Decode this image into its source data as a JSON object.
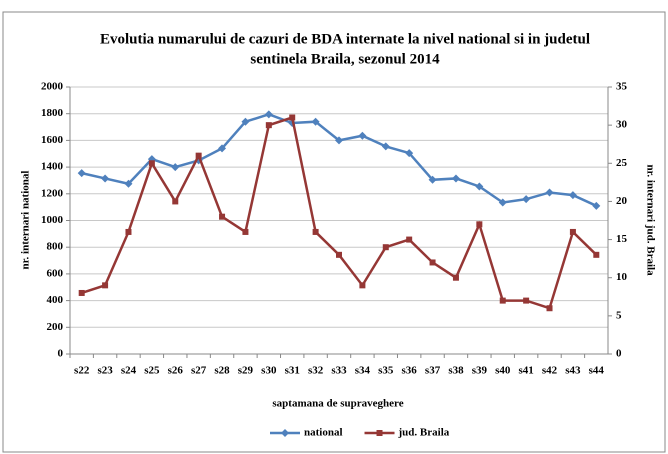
{
  "chart_data": {
    "type": "line",
    "title_lines": [
      "Evolutia numarului de cazuri de BDA internate la nivel national si in judetul",
      "sentinela Braila, sezonul 2014"
    ],
    "x_label": "saptamana de supraveghere",
    "y_label": "nr. internari national",
    "y2_label": "nr. internari jud. Braila",
    "categories": [
      "s22",
      "s23",
      "s24",
      "s25",
      "s26",
      "s27",
      "s28",
      "s29",
      "s30",
      "s31",
      "s32",
      "s33",
      "s34",
      "s35",
      "s36",
      "s37",
      "s38",
      "s39",
      "s40",
      "s41",
      "s42",
      "s43",
      "s44"
    ],
    "series": [
      {
        "name": "national",
        "color": "#4f81bd",
        "marker": "diamond",
        "values": [
          1355,
          1315,
          1275,
          1460,
          1400,
          1450,
          1540,
          1740,
          1795,
          1730,
          1740,
          1600,
          1635,
          1555,
          1505,
          1305,
          1315,
          1255,
          1135,
          1160,
          1210,
          1190,
          1110
        ]
      },
      {
        "name": "jud. Braila",
        "color": "#953735",
        "marker": "square",
        "axis": "y2",
        "values": [
          8,
          9,
          16,
          25,
          20,
          26,
          18,
          16,
          30,
          31,
          16,
          13,
          9,
          14,
          15,
          12,
          10,
          17,
          7,
          7,
          6,
          16,
          13
        ]
      }
    ],
    "ylim": [
      0,
      2000
    ],
    "yticks": [
      0,
      200,
      400,
      600,
      800,
      1000,
      1200,
      1400,
      1600,
      1800,
      2000
    ],
    "y2lim": [
      0,
      35
    ],
    "y2ticks": [
      0,
      5,
      10,
      15,
      20,
      25,
      30,
      35
    ],
    "grid": true,
    "legend": "bottom"
  }
}
